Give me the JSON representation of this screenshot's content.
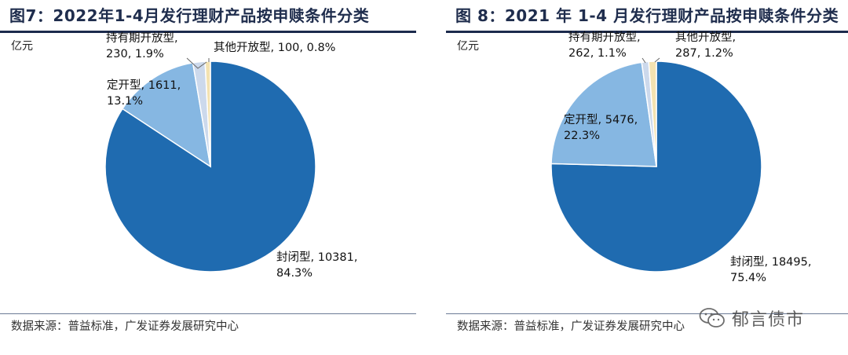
{
  "chart_data": [
    {
      "type": "pie",
      "title": "图7：2022年1-4月发行理财产品按申赎条件分类",
      "unit": "亿元",
      "source": "数据来源：普益标准，广发证券发展研究中心",
      "slices": [
        {
          "name": "封闭型",
          "value": 10381,
          "percent": "84.3%",
          "color": "#1f6bb0"
        },
        {
          "name": "定开型",
          "value": 1611,
          "percent": "13.1%",
          "color": "#86b7e2"
        },
        {
          "name": "持有期开放型",
          "value": 230,
          "percent": "1.9%",
          "color": "#ccd9ec"
        },
        {
          "name": "其他开放型",
          "value": 100,
          "percent": "0.8%",
          "color": "#f3e2b1"
        }
      ]
    },
    {
      "type": "pie",
      "title": "图 8：2021 年 1-4 月发行理财产品按申赎条件分类",
      "unit": "亿元",
      "source": "数据来源：普益标准，广发证券发展研究中心",
      "slices": [
        {
          "name": "封闭型",
          "value": 18495,
          "percent": "75.4%",
          "color": "#1f6bb0"
        },
        {
          "name": "定开型",
          "value": 5476,
          "percent": "22.3%",
          "color": "#86b7e2"
        },
        {
          "name": "持有期开放型",
          "value": 262,
          "percent": "1.1%",
          "color": "#ccd9ec"
        },
        {
          "name": "其他开放型",
          "value": 287,
          "percent": "1.2%",
          "color": "#f3e2b1"
        }
      ]
    }
  ],
  "watermark": {
    "text": "郁言债市",
    "icon": "wechat-icon"
  }
}
